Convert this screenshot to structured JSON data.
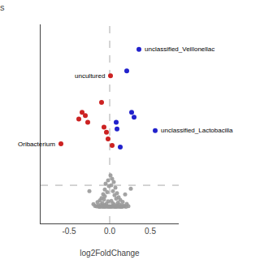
{
  "chart_data": {
    "type": "scatter",
    "title": "s",
    "x_label": "log2FoldChange",
    "series": [
      {
        "color": "#999999",
        "x": [
          0.01,
          0.03,
          -0.02,
          0.05,
          -0.05,
          0.02,
          -0.01,
          0.07,
          -0.06,
          0.04,
          -0.03,
          0.09,
          -0.08,
          0.06,
          -0.06,
          0.11,
          -0.1,
          0.08,
          -0.07,
          0.13,
          -0.12,
          0.02,
          -0.02,
          0.16,
          -0.15,
          0.1,
          -0.09,
          0.04,
          -0.04,
          0.21,
          -0.2,
          0.12,
          -0.11,
          0.06,
          -0.06,
          0.15,
          -0.14,
          0.09,
          -0.08,
          0.18,
          -0.18,
          0.03,
          -0.03,
          0.23,
          0.17,
          -0.16,
          0.01,
          -0.01,
          0.1,
          -0.09,
          0.14,
          -0.13,
          0.05,
          -0.05,
          0.07,
          0.12,
          -0.07,
          0.02,
          -0.02,
          0.2,
          0.08,
          -0.12,
          0.15,
          0.26,
          -0.25,
          0.19
        ],
        "values": [
          1.9,
          1.7,
          1.6,
          1.5,
          1.4,
          1.3,
          1.25,
          1.15,
          1.05,
          0.95,
          0.88,
          0.82,
          0.76,
          0.7,
          0.64,
          0.58,
          0.53,
          0.49,
          0.45,
          0.42,
          0.39,
          0.36,
          0.33,
          0.3,
          0.28,
          0.25,
          0.23,
          0.21,
          0.19,
          0.17,
          0.16,
          0.14,
          0.13,
          0.11,
          0.1,
          0.09,
          0.08,
          0.07,
          0.06,
          0.055,
          0.05,
          0.045,
          0.04,
          0.035,
          0.03,
          0.025,
          0.02,
          0.015,
          0.012,
          0.009,
          0.007,
          0.006,
          0.005,
          0.004,
          0.003,
          0.002,
          0.0015,
          0.001,
          0.0008,
          0.0005,
          0.0003,
          0.0002,
          0.0001,
          1.1,
          0.95,
          0.75
        ]
      },
      {
        "color": "#CC2222",
        "x": [
          -0.6,
          -0.38,
          -0.34,
          -0.3,
          -0.27,
          -0.1,
          -0.07,
          -0.04,
          -0.02,
          0.01,
          0.03
        ],
        "values": [
          3.8,
          5.3,
          5.7,
          5.5,
          5.1,
          6.3,
          4.8,
          4.5,
          4.1,
          7.9,
          3.7
        ]
      },
      {
        "color": "#2222CC",
        "x": [
          0.36,
          0.21,
          0.27,
          0.3,
          0.08,
          0.09,
          0.13,
          0.56
        ],
        "values": [
          9.5,
          8.2,
          5.7,
          5.4,
          5.1,
          4.7,
          3.6,
          4.6
        ]
      }
    ],
    "xlim": [
      -0.85,
      0.85
    ],
    "ylim": [
      -1,
      11
    ],
    "xticks": [
      -0.5,
      {
        "value": 0.0,
        "label": "0.0"
      },
      0.5
    ],
    "yticks": [],
    "tick_labels": "x",
    "grid": false,
    "reference_lines": [
      {
        "axis": "y",
        "value": 1.3,
        "color": "#aaaaaa",
        "line_style": "dashed"
      },
      {
        "axis": "x",
        "value": 0.0,
        "color": "#aaaaaa",
        "line_style": "dashed"
      }
    ],
    "annotations": [
      {
        "text": "unclassified_Veillonellac",
        "x": 0.36,
        "y": 9.5
      },
      {
        "text": "uncultured",
        "x": 0.01,
        "y": 7.9
      },
      {
        "text": "Oribacterium",
        "x": -0.6,
        "y": 3.8
      },
      {
        "text": "unclassified_Lactobacilla",
        "x": 0.56,
        "y": 4.6
      }
    ]
  }
}
